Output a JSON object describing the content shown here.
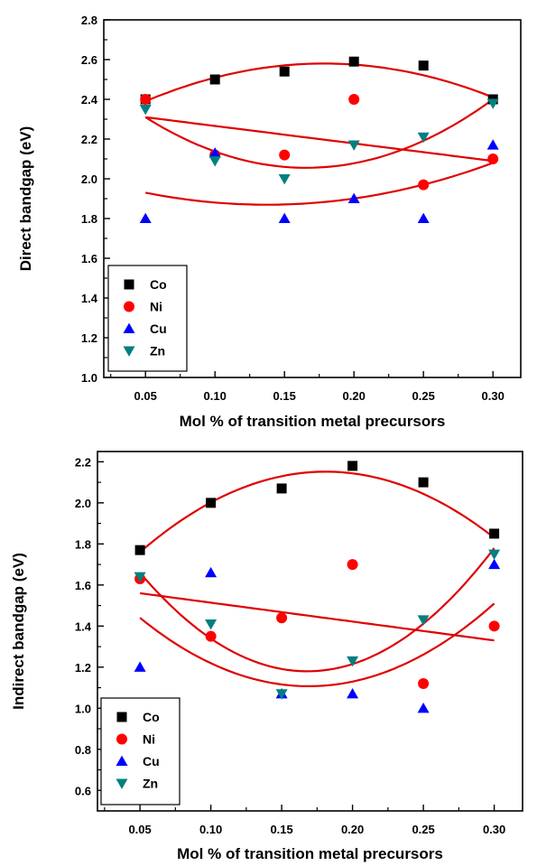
{
  "colors": {
    "Co": "#000000",
    "Ni": "#ff0000",
    "Cu": "#0000ff",
    "Zn": "#008080",
    "fit": "#e00000"
  },
  "chart_data": [
    {
      "type": "scatter",
      "title": "",
      "xlabel": "Mol % of transition metal precursors",
      "ylabel": "Direct bandgap (eV)",
      "xlim": [
        0.02,
        0.32
      ],
      "ylim": [
        1.0,
        2.8
      ],
      "x_ticks": [
        "0.05",
        "0.10",
        "0.15",
        "0.20",
        "0.25",
        "0.30"
      ],
      "y_ticks": [
        "1.0",
        "1.2",
        "1.4",
        "1.6",
        "1.8",
        "2.0",
        "2.2",
        "2.4",
        "2.6",
        "2.8"
      ],
      "legend": "bottom-left",
      "series": [
        {
          "name": "Co",
          "marker": "square",
          "color": "#000000",
          "x": [
            0.05,
            0.1,
            0.15,
            0.2,
            0.25,
            0.3
          ],
          "y": [
            2.4,
            2.5,
            2.54,
            2.59,
            2.57,
            2.4
          ]
        },
        {
          "name": "Ni",
          "marker": "circle",
          "color": "#ff0000",
          "x": [
            0.05,
            0.1,
            0.15,
            0.2,
            0.25,
            0.3
          ],
          "y": [
            2.4,
            2.12,
            2.12,
            2.4,
            1.97,
            2.1
          ]
        },
        {
          "name": "Cu",
          "marker": "triangle-up",
          "color": "#0000ff",
          "x": [
            0.05,
            0.1,
            0.15,
            0.2,
            0.25,
            0.3
          ],
          "y": [
            1.8,
            2.13,
            1.8,
            1.9,
            1.8,
            2.17
          ]
        },
        {
          "name": "Zn",
          "marker": "triangle-down",
          "color": "#008080",
          "x": [
            0.05,
            0.1,
            0.15,
            0.2,
            0.25,
            0.3
          ],
          "y": [
            2.35,
            2.09,
            2.0,
            2.17,
            2.21,
            2.38
          ]
        }
      ],
      "fits": [
        {
          "kind": "quadratic",
          "x": [
            0.05,
            0.175,
            0.3
          ],
          "y": [
            2.39,
            2.58,
            2.41
          ]
        },
        {
          "kind": "linear",
          "x": [
            0.05,
            0.3
          ],
          "y": [
            2.31,
            2.09
          ]
        },
        {
          "kind": "quadratic",
          "x": [
            0.05,
            0.15,
            0.3
          ],
          "y": [
            2.31,
            2.06,
            2.4
          ]
        },
        {
          "kind": "quadratic",
          "x": [
            0.05,
            0.13,
            0.3
          ],
          "y": [
            1.93,
            1.87,
            2.08
          ]
        }
      ]
    },
    {
      "type": "scatter",
      "title": "",
      "xlabel": "Mol % of transition metal precursors",
      "ylabel": "Indirect bandgap (eV)",
      "xlim": [
        0.02,
        0.32
      ],
      "ylim": [
        0.5,
        2.25
      ],
      "x_ticks": [
        "0.05",
        "0.10",
        "0.15",
        "0.20",
        "0.25",
        "0.30"
      ],
      "y_ticks": [
        "0.6",
        "0.8",
        "1.0",
        "1.2",
        "1.4",
        "1.6",
        "1.8",
        "2.0",
        "2.2"
      ],
      "legend": "bottom-left",
      "series": [
        {
          "name": "Co",
          "marker": "square",
          "color": "#000000",
          "x": [
            0.05,
            0.1,
            0.15,
            0.2,
            0.25,
            0.3
          ],
          "y": [
            1.77,
            2.0,
            2.07,
            2.18,
            2.1,
            1.85
          ]
        },
        {
          "name": "Ni",
          "marker": "circle",
          "color": "#ff0000",
          "x": [
            0.05,
            0.1,
            0.15,
            0.2,
            0.25,
            0.3
          ],
          "y": [
            1.63,
            1.35,
            1.44,
            1.7,
            1.12,
            1.4
          ]
        },
        {
          "name": "Cu",
          "marker": "triangle-up",
          "color": "#0000ff",
          "x": [
            0.05,
            0.1,
            0.15,
            0.2,
            0.25,
            0.3
          ],
          "y": [
            1.2,
            1.66,
            1.07,
            1.07,
            1.0,
            1.7
          ]
        },
        {
          "name": "Zn",
          "marker": "triangle-down",
          "color": "#008080",
          "x": [
            0.05,
            0.1,
            0.15,
            0.2,
            0.25,
            0.3
          ],
          "y": [
            1.64,
            1.41,
            1.07,
            1.23,
            1.43,
            1.75
          ]
        }
      ],
      "fits": [
        {
          "kind": "quadratic",
          "x": [
            0.05,
            0.19,
            0.3
          ],
          "y": [
            1.76,
            2.15,
            1.83
          ]
        },
        {
          "kind": "linear",
          "x": [
            0.05,
            0.3
          ],
          "y": [
            1.56,
            1.33
          ]
        },
        {
          "kind": "quadratic",
          "x": [
            0.05,
            0.17,
            0.3
          ],
          "y": [
            1.66,
            1.18,
            1.78
          ]
        },
        {
          "kind": "quadratic",
          "x": [
            0.05,
            0.18,
            0.3
          ],
          "y": [
            1.44,
            1.11,
            1.51
          ]
        }
      ]
    }
  ]
}
